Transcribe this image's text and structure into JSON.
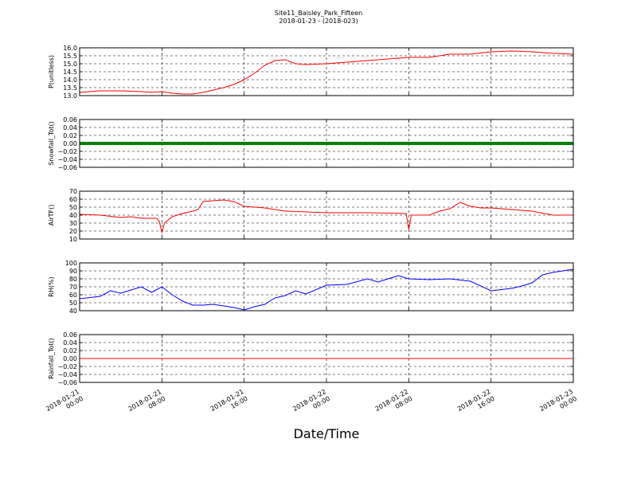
{
  "chart_data": {
    "type": "line",
    "title": "Site11_Baisley_Park_Fifteen",
    "subtitle": "2018-01-23 - (2018-023)",
    "xlabel": "Date/Time",
    "x_ticks": [
      "2018-01-21 00:00",
      "2018-01-21 08:00",
      "2018-01-21 16:00",
      "2018-01-22 00:00",
      "2018-01-22 08:00",
      "2018-01-22 16:00",
      "2018-01-23 00:00"
    ],
    "x_range": [
      "2018-01-21 00:00",
      "2018-01-23 00:00"
    ],
    "grid": true,
    "panels": [
      {
        "ylabel": "P(unitless)",
        "ylim": [
          13.0,
          16.0
        ],
        "yticks": [
          "13.0",
          "13.5",
          "14.0",
          "14.5",
          "15.0",
          "15.5",
          "16.0"
        ],
        "series": [
          {
            "color": "#ff0000",
            "x": [
              "2018-01-21 00:00",
              "2018-01-21 02:00",
              "2018-01-21 04:00",
              "2018-01-21 06:00",
              "2018-01-21 07:00",
              "2018-01-21 08:00",
              "2018-01-21 09:00",
              "2018-01-21 10:00",
              "2018-01-21 11:00",
              "2018-01-21 12:00",
              "2018-01-21 13:00",
              "2018-01-21 14:00",
              "2018-01-21 15:00",
              "2018-01-21 16:00",
              "2018-01-21 17:00",
              "2018-01-21 18:00",
              "2018-01-21 19:00",
              "2018-01-21 20:00",
              "2018-01-21 21:00",
              "2018-01-21 22:00",
              "2018-01-22 00:00",
              "2018-01-22 02:00",
              "2018-01-22 04:00",
              "2018-01-22 05:00",
              "2018-01-22 06:00",
              "2018-01-22 08:00",
              "2018-01-22 09:00",
              "2018-01-22 10:00",
              "2018-01-22 12:00",
              "2018-01-22 14:00",
              "2018-01-22 16:00",
              "2018-01-22 18:00",
              "2018-01-22 20:00",
              "2018-01-22 22:00",
              "2018-01-23 00:00"
            ],
            "y": [
              13.2,
              13.3,
              13.3,
              13.25,
              13.2,
              13.25,
              13.15,
              13.1,
              13.1,
              13.2,
              13.35,
              13.5,
              13.7,
              14.0,
              14.4,
              14.9,
              15.2,
              15.25,
              15.0,
              14.95,
              15.0,
              15.1,
              15.2,
              15.25,
              15.3,
              15.4,
              15.4,
              15.4,
              15.6,
              15.6,
              15.75,
              15.8,
              15.75,
              15.65,
              15.6
            ]
          }
        ]
      },
      {
        "ylabel": "Snowfall_Tot()",
        "ylim": [
          -0.06,
          0.06
        ],
        "yticks": [
          "−0.06",
          "−0.04",
          "−0.02",
          "0.00",
          "0.02",
          "0.04",
          "0.06"
        ],
        "series": [
          {
            "color": "#008000",
            "x": [
              "2018-01-21 00:00",
              "2018-01-23 00:00"
            ],
            "y": [
              0.0,
              0.0
            ]
          }
        ]
      },
      {
        "ylabel": "AirTF()",
        "ylim": [
          10,
          70
        ],
        "yticks": [
          "10",
          "20",
          "30",
          "40",
          "50",
          "60",
          "70"
        ],
        "series": [
          {
            "color": "#ff0000",
            "x": [
              "2018-01-21 00:00",
              "2018-01-21 02:00",
              "2018-01-21 04:00",
              "2018-01-21 05:00",
              "2018-01-21 06:00",
              "2018-01-21 07:30",
              "2018-01-21 07:45",
              "2018-01-21 08:00",
              "2018-01-21 08:15",
              "2018-01-21 09:00",
              "2018-01-21 10:00",
              "2018-01-21 11:00",
              "2018-01-21 11:30",
              "2018-01-21 12:00",
              "2018-01-21 13:00",
              "2018-01-21 14:00",
              "2018-01-21 15:00",
              "2018-01-21 16:00",
              "2018-01-21 18:00",
              "2018-01-21 20:00",
              "2018-01-22 00:00",
              "2018-01-22 02:00",
              "2018-01-22 04:00",
              "2018-01-22 07:45",
              "2018-01-22 08:00",
              "2018-01-22 08:15",
              "2018-01-22 09:00",
              "2018-01-22 10:00",
              "2018-01-22 11:00",
              "2018-01-22 12:00",
              "2018-01-22 13:00",
              "2018-01-22 14:00",
              "2018-01-22 15:00",
              "2018-01-22 16:00",
              "2018-01-22 18:00",
              "2018-01-22 20:00",
              "2018-01-22 22:00",
              "2018-01-23 00:00"
            ],
            "y": [
              41,
              40,
              37,
              38,
              36,
              36,
              32,
              18,
              30,
              38,
              42,
              45,
              47,
              57,
              58,
              59,
              57,
              51,
              49,
              45,
              43,
              43,
              43,
              42,
              22,
              40,
              40,
              40,
              45,
              48,
              56,
              51,
              49,
              49,
              47,
              45,
              40,
              40
            ]
          }
        ]
      },
      {
        "ylabel": "RH(%)",
        "ylim": [
          40,
          100
        ],
        "yticks": [
          "40",
          "50",
          "60",
          "70",
          "80",
          "90",
          "100"
        ],
        "series": [
          {
            "color": "#0000ff",
            "x": [
              "2018-01-21 00:00",
              "2018-01-21 02:00",
              "2018-01-21 03:00",
              "2018-01-21 04:00",
              "2018-01-21 05:00",
              "2018-01-21 06:00",
              "2018-01-21 07:00",
              "2018-01-21 08:00",
              "2018-01-21 09:00",
              "2018-01-21 10:00",
              "2018-01-21 11:00",
              "2018-01-21 12:00",
              "2018-01-21 13:00",
              "2018-01-21 14:00",
              "2018-01-21 15:00",
              "2018-01-21 16:00",
              "2018-01-21 17:00",
              "2018-01-21 18:00",
              "2018-01-21 19:00",
              "2018-01-21 20:00",
              "2018-01-21 21:00",
              "2018-01-21 22:00",
              "2018-01-22 00:00",
              "2018-01-22 02:00",
              "2018-01-22 04:00",
              "2018-01-22 05:00",
              "2018-01-22 06:00",
              "2018-01-22 07:00",
              "2018-01-22 08:00",
              "2018-01-22 10:00",
              "2018-01-22 12:00",
              "2018-01-22 14:00",
              "2018-01-22 16:00",
              "2018-01-22 18:00",
              "2018-01-22 19:00",
              "2018-01-22 20:00",
              "2018-01-22 21:00",
              "2018-01-22 22:00",
              "2018-01-23 00:00"
            ],
            "y": [
              55,
              58,
              65,
              62,
              66,
              70,
              63,
              70,
              60,
              52,
              47,
              47,
              48,
              46,
              44,
              41,
              45,
              48,
              56,
              59,
              65,
              61,
              72,
              73,
              80,
              76,
              80,
              84,
              80,
              79,
              80,
              77,
              65,
              68,
              71,
              75,
              85,
              88,
              92
            ]
          }
        ]
      },
      {
        "ylabel": "Rainfall_Tot()",
        "ylim": [
          -0.06,
          0.06
        ],
        "yticks": [
          "−0.06",
          "−0.04",
          "−0.02",
          "0.00",
          "0.02",
          "0.04",
          "0.06"
        ],
        "series": [
          {
            "color": "#ff0000",
            "x": [
              "2018-01-21 00:00",
              "2018-01-23 00:00"
            ],
            "y": [
              0.0,
              0.0
            ]
          }
        ]
      }
    ]
  }
}
